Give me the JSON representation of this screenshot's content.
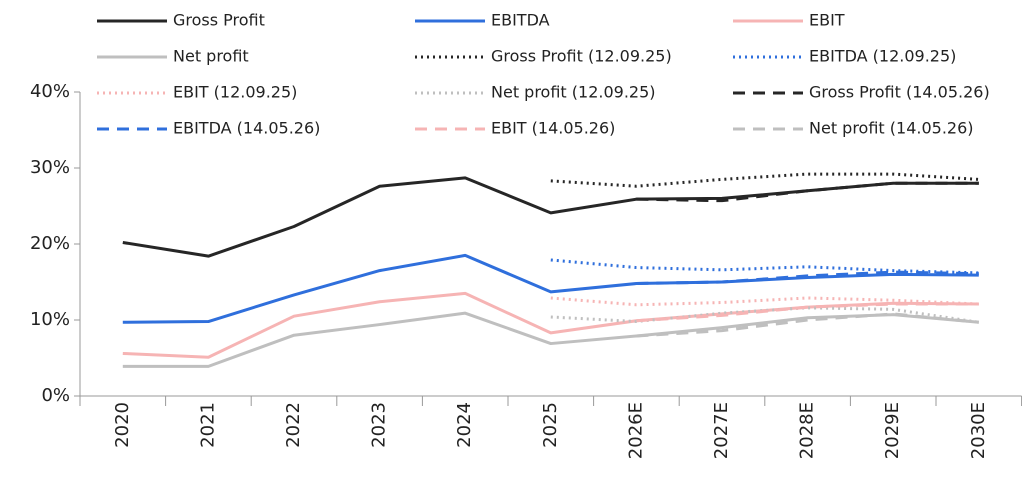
{
  "chart_data": {
    "type": "line",
    "categories": [
      "2020",
      "2021",
      "2022",
      "2023",
      "2024",
      "2025",
      "2026E",
      "2027E",
      "2028E",
      "2029E",
      "2030E"
    ],
    "ylim": [
      0,
      40
    ],
    "yticks": [
      {
        "value": 0,
        "label": "0%"
      },
      {
        "value": 10,
        "label": "10%"
      },
      {
        "value": 20,
        "label": "20%"
      },
      {
        "value": 30,
        "label": "30%"
      },
      {
        "value": 40,
        "label": "40%"
      }
    ],
    "series": [
      {
        "name": "Gross Profit",
        "color": "#262626",
        "dash": "solid",
        "values": [
          20.2,
          18.4,
          22.3,
          27.6,
          28.7,
          24.1,
          25.9,
          26.0,
          27.0,
          28.0,
          28.0
        ]
      },
      {
        "name": "EBITDA",
        "color": "#2f6fdc",
        "dash": "solid",
        "values": [
          9.7,
          9.8,
          13.3,
          16.5,
          18.5,
          13.7,
          14.8,
          15.0,
          15.6,
          16.0,
          15.9
        ]
      },
      {
        "name": "EBIT",
        "color": "#f6b4b4",
        "dash": "solid",
        "values": [
          5.6,
          5.1,
          10.5,
          12.4,
          13.5,
          8.3,
          9.9,
          10.8,
          11.7,
          12.2,
          12.1
        ]
      },
      {
        "name": "Net profit",
        "color": "#bfbfbf",
        "dash": "solid",
        "values": [
          3.9,
          3.9,
          8.0,
          9.4,
          10.9,
          6.9,
          7.9,
          9.0,
          10.3,
          10.7,
          9.7
        ]
      },
      {
        "name": "Gross Profit  (12.09.25)",
        "color": "#262626",
        "dash": "dotted",
        "values": [
          null,
          null,
          null,
          null,
          null,
          28.3,
          27.6,
          28.5,
          29.2,
          29.2,
          28.5
        ]
      },
      {
        "name": "EBITDA (12.09.25)",
        "color": "#2f6fdc",
        "dash": "dotted",
        "values": [
          null,
          null,
          null,
          null,
          null,
          17.9,
          16.9,
          16.6,
          17.0,
          16.5,
          16.2
        ]
      },
      {
        "name": "EBIT (12.09.25)",
        "color": "#f6b4b4",
        "dash": "dotted",
        "values": [
          null,
          null,
          null,
          null,
          null,
          12.9,
          12.0,
          12.3,
          12.9,
          12.6,
          12.1
        ]
      },
      {
        "name": "Net profit (12.09.25)",
        "color": "#bfbfbf",
        "dash": "dotted",
        "values": [
          null,
          null,
          null,
          null,
          null,
          10.4,
          9.8,
          10.9,
          11.6,
          11.4,
          9.7
        ]
      },
      {
        "name": "Gross Profit  (14.05.26)",
        "color": "#262626",
        "dash": "dashed",
        "values": [
          null,
          null,
          null,
          null,
          null,
          null,
          25.9,
          25.7,
          27.0,
          28.0,
          28.0
        ]
      },
      {
        "name": "EBITDA (14.05.26)",
        "color": "#2f6fdc",
        "dash": "dashed",
        "values": [
          null,
          null,
          null,
          null,
          null,
          null,
          14.8,
          15.0,
          15.8,
          16.3,
          16.1
        ]
      },
      {
        "name": "EBIT (14.05.26)",
        "color": "#f6b4b4",
        "dash": "dashed",
        "values": [
          null,
          null,
          null,
          null,
          null,
          null,
          9.9,
          10.6,
          11.7,
          12.1,
          12.1
        ]
      },
      {
        "name": "Net profit (14.05.26)",
        "color": "#bfbfbf",
        "dash": "dashed",
        "values": [
          null,
          null,
          null,
          null,
          null,
          null,
          7.9,
          8.6,
          10.0,
          10.8,
          9.7
        ]
      }
    ]
  }
}
